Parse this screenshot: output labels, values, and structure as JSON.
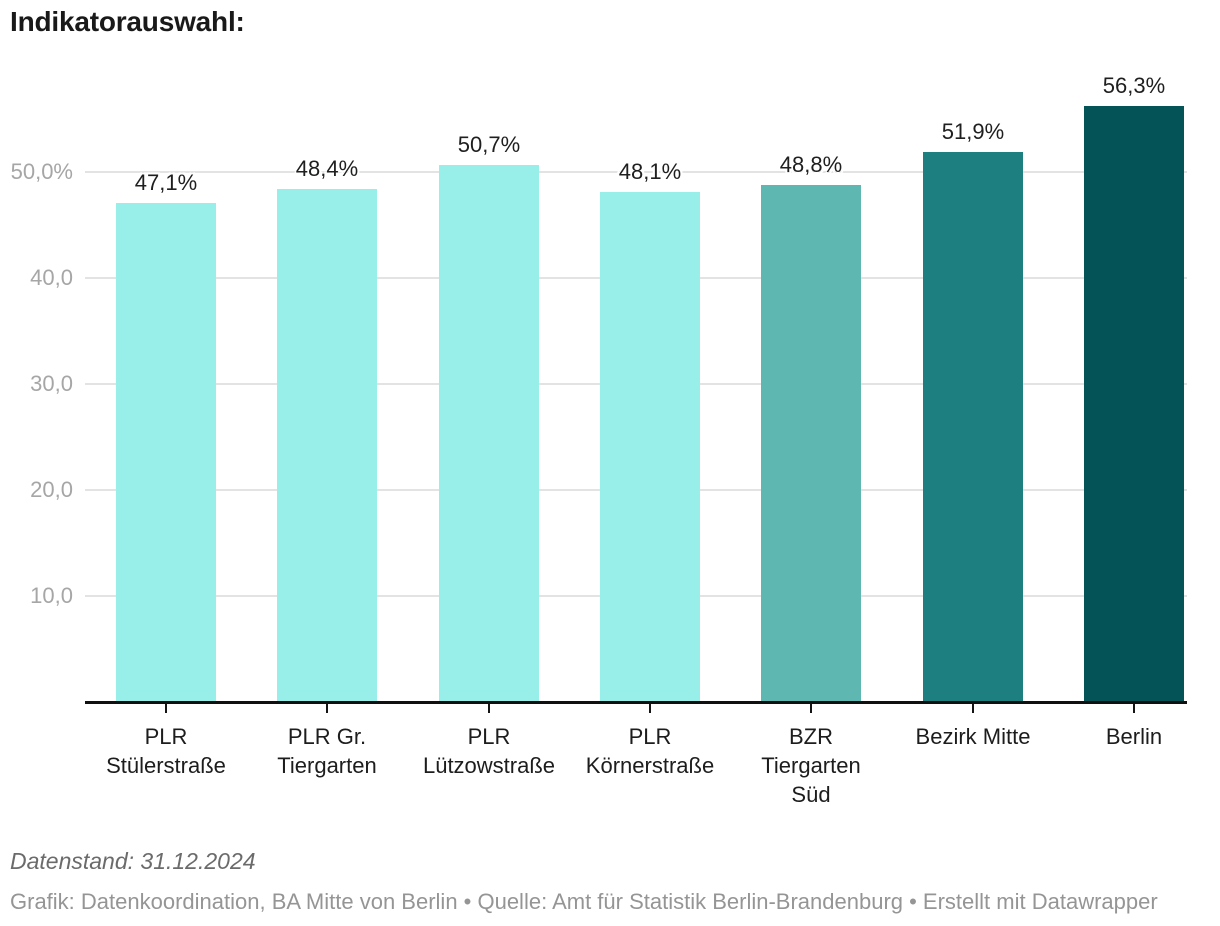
{
  "title": "Indikatorauswahl:",
  "chart_data": {
    "type": "bar",
    "title": "Indikatorauswahl:",
    "xlabel": "",
    "ylabel": "",
    "unit": "%",
    "ylim": [
      0,
      60
    ],
    "grid": true,
    "legend_position": "none",
    "categories": [
      "PLR Stülerstraße",
      "PLR Gr. Tiergarten",
      "PLR Lützowstraße",
      "PLR Körnerstraße",
      "BZR Tiergarten Süd",
      "Bezirk Mitte",
      "Berlin"
    ],
    "category_lines": [
      [
        "PLR",
        "Stülerstraße"
      ],
      [
        "PLR Gr.",
        "Tiergarten"
      ],
      [
        "PLR",
        "Lützowstraße"
      ],
      [
        "PLR",
        "Körnerstraße"
      ],
      [
        "BZR",
        "Tiergarten",
        "Süd"
      ],
      [
        "Bezirk Mitte"
      ],
      [
        "Berlin"
      ]
    ],
    "values": [
      47.1,
      48.4,
      50.7,
      48.1,
      48.8,
      51.9,
      56.3
    ],
    "value_labels": [
      "47,1%",
      "48,4%",
      "50,7%",
      "48,1%",
      "48,8%",
      "51,9%",
      "56,3%"
    ],
    "bar_colors": [
      "#98efe9",
      "#98efe9",
      "#98efe9",
      "#98efe9",
      "#5fb7b1",
      "#1d7f80",
      "#045457"
    ],
    "y_axis": {
      "ticks": [
        {
          "value": 10,
          "label": "10,0"
        },
        {
          "value": 20,
          "label": "20,0"
        },
        {
          "value": 30,
          "label": "30,0"
        },
        {
          "value": 40,
          "label": "40,0"
        },
        {
          "value": 50,
          "label": "50,0%"
        }
      ]
    }
  },
  "footer": {
    "note": "Datenstand: 31.12.2024",
    "byline": "Grafik: Datenkoordination, BA Mitte von Berlin • Quelle: Amt für Statistik Berlin-Brandenburg • Erstellt mit Datawrapper"
  },
  "colors": {
    "background": "#ffffff",
    "gridline": "#e3e3e3",
    "axis_line": "#101010",
    "y_tick_text": "#a6a6a6",
    "x_tick_text": "#1d1d1d",
    "value_label_text": "#1f1f1f",
    "title_text": "#191919",
    "note_text": "#6b6b6b",
    "byline_text": "#959595"
  }
}
